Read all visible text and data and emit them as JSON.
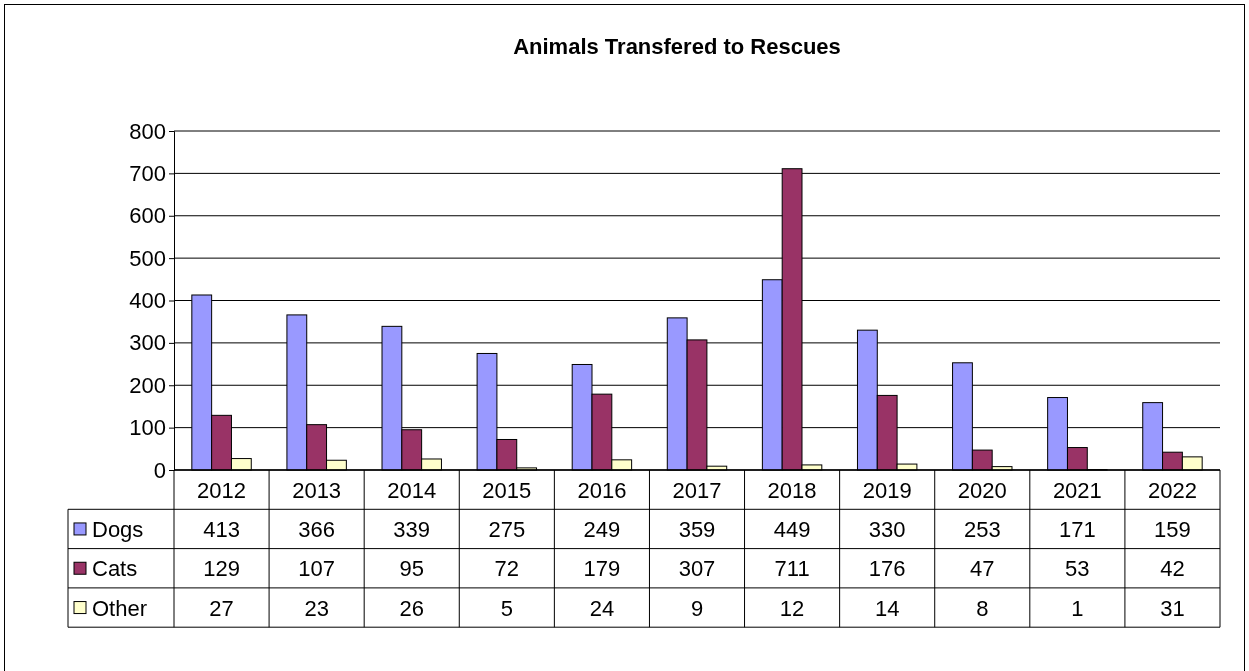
{
  "chart_data": {
    "type": "bar",
    "title": "Animals Transfered to Rescues",
    "categories": [
      "2012",
      "2013",
      "2014",
      "2015",
      "2016",
      "2017",
      "2018",
      "2019",
      "2020",
      "2021",
      "2022"
    ],
    "series": [
      {
        "name": "Dogs",
        "color": "#9999ff",
        "values": [
          413,
          366,
          339,
          275,
          249,
          359,
          449,
          330,
          253,
          171,
          159
        ]
      },
      {
        "name": "Cats",
        "color": "#993366",
        "values": [
          129,
          107,
          95,
          72,
          179,
          307,
          711,
          176,
          47,
          53,
          42
        ]
      },
      {
        "name": "Other",
        "color": "#ffffcc",
        "values": [
          27,
          23,
          26,
          5,
          24,
          9,
          12,
          14,
          8,
          1,
          31
        ]
      }
    ],
    "ylim": [
      0,
      800
    ],
    "yticks": [
      0,
      100,
      200,
      300,
      400,
      500,
      600,
      700,
      800
    ],
    "grid": "y",
    "legend": "bottom",
    "data_labels": true
  }
}
